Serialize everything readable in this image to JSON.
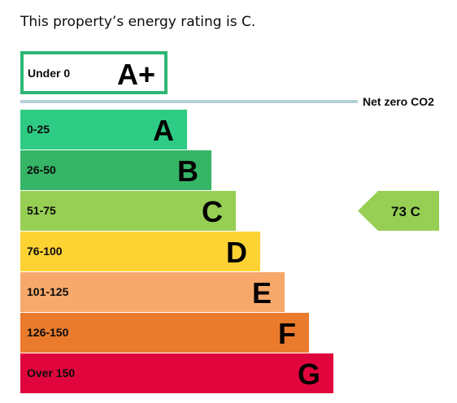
{
  "headline": "This property’s energy rating is C.",
  "chart_data": {
    "type": "bar",
    "title": "This property’s energy rating is C.",
    "top_band": {
      "grade": "A+",
      "range": "Under 0",
      "color": "#2db872"
    },
    "net_zero_label": "Net zero CO2",
    "net_zero_line_color": "#b4cfd9",
    "bands": [
      {
        "grade": "A",
        "range": "0-25",
        "color": "#2ecb84"
      },
      {
        "grade": "B",
        "range": "26-50",
        "color": "#35b565"
      },
      {
        "grade": "C",
        "range": "51-75",
        "color": "#96cf53"
      },
      {
        "grade": "D",
        "range": "76-100",
        "color": "#fdd233"
      },
      {
        "grade": "E",
        "range": "101-125",
        "color": "#f7a96b"
      },
      {
        "grade": "F",
        "range": "126-150",
        "color": "#ea7b2d"
      },
      {
        "grade": "G",
        "range": "Over 150",
        "color": "#e1053d"
      }
    ],
    "current_rating": {
      "value": 73,
      "grade": "C",
      "label": "73  C",
      "color": "#96cf53"
    }
  }
}
